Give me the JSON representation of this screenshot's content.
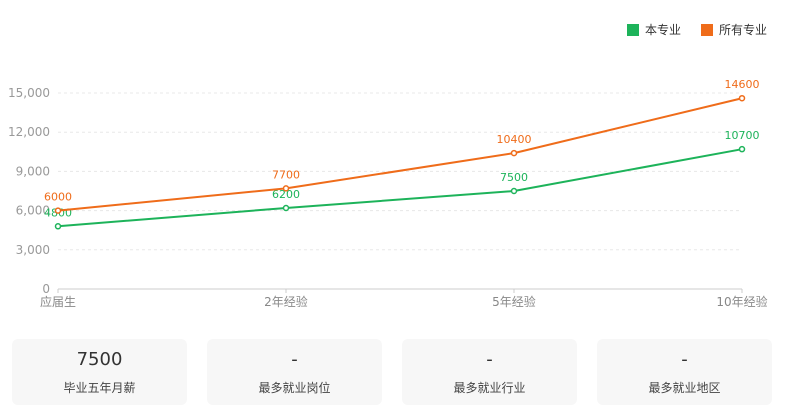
{
  "chart_data": {
    "type": "line",
    "categories": [
      "应届生",
      "2年经验",
      "5年经验",
      "10年经验"
    ],
    "series": [
      {
        "name": "本专业",
        "color": "#1db35a",
        "values": [
          4800,
          6200,
          7500,
          10700
        ]
      },
      {
        "name": "所有专业",
        "color": "#ef6c1a",
        "values": [
          6000,
          7700,
          10400,
          14600
        ]
      }
    ],
    "ylim": [
      0,
      15000
    ],
    "yticks": [
      0,
      3000,
      6000,
      9000,
      12000,
      15000
    ],
    "ytick_labels": [
      "0",
      "3,000",
      "6,000",
      "9,000",
      "12,000",
      "15,000"
    ],
    "grid": true,
    "legend_position": "top-right"
  },
  "cards": [
    {
      "value": "7500",
      "label": "毕业五年月薪"
    },
    {
      "value": "-",
      "label": "最多就业岗位"
    },
    {
      "value": "-",
      "label": "最多就业行业"
    },
    {
      "value": "-",
      "label": "最多就业地区"
    }
  ]
}
